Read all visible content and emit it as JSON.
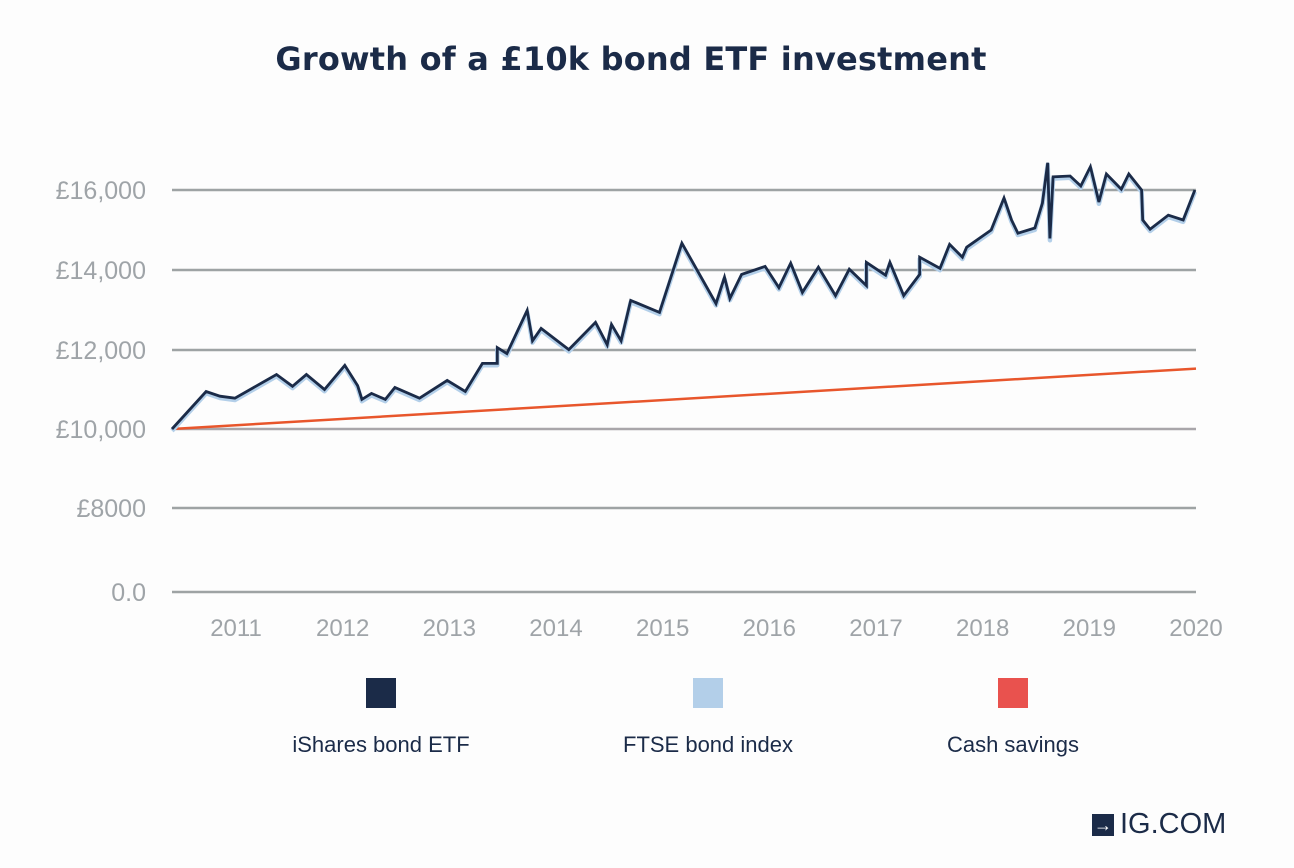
{
  "chart_data": {
    "type": "line",
    "title": "Growth of a £10k bond ETF investment",
    "xlabel": "",
    "ylabel": "",
    "xlim": [
      2010.4,
      2020
    ],
    "x_ticks": [
      "2011",
      "2012",
      "2013",
      "2014",
      "2015",
      "2016",
      "2017",
      "2018",
      "2019",
      "2020"
    ],
    "y_ticks": [
      {
        "value": 0,
        "label": "0.0"
      },
      {
        "value": 8000,
        "label": "£8000"
      },
      {
        "value": 10000,
        "label": "£10,000"
      },
      {
        "value": 12000,
        "label": "£12,000"
      },
      {
        "value": 14000,
        "label": "£14,000"
      },
      {
        "value": 16000,
        "label": "£16,000"
      }
    ],
    "grid": true,
    "legend_position": "bottom",
    "series": [
      {
        "name": "iShares bond ETF",
        "color": "#1b2b48",
        "points": [
          [
            2010.4,
            10000
          ],
          [
            2010.72,
            10950
          ],
          [
            2010.85,
            10830
          ],
          [
            2010.99,
            10780
          ],
          [
            2011.38,
            11380
          ],
          [
            2011.53,
            11080
          ],
          [
            2011.66,
            11380
          ],
          [
            2011.83,
            11000
          ],
          [
            2012.02,
            11610
          ],
          [
            2012.14,
            11100
          ],
          [
            2012.18,
            10750
          ],
          [
            2012.27,
            10900
          ],
          [
            2012.4,
            10750
          ],
          [
            2012.49,
            11050
          ],
          [
            2012.72,
            10780
          ],
          [
            2012.98,
            11230
          ],
          [
            2013.15,
            10950
          ],
          [
            2013.31,
            11660
          ],
          [
            2013.45,
            11660
          ],
          [
            2013.45,
            12060
          ],
          [
            2013.54,
            11910
          ],
          [
            2013.73,
            12990
          ],
          [
            2013.78,
            12230
          ],
          [
            2013.86,
            12540
          ],
          [
            2014.12,
            12010
          ],
          [
            2014.37,
            12690
          ],
          [
            2014.48,
            12130
          ],
          [
            2014.52,
            12640
          ],
          [
            2014.61,
            12230
          ],
          [
            2014.7,
            13240
          ],
          [
            2014.97,
            12940
          ],
          [
            2015.18,
            14670
          ],
          [
            2015.5,
            13160
          ],
          [
            2015.58,
            13820
          ],
          [
            2015.63,
            13290
          ],
          [
            2015.74,
            13890
          ],
          [
            2015.96,
            14090
          ],
          [
            2016.09,
            13560
          ],
          [
            2016.2,
            14170
          ],
          [
            2016.31,
            13440
          ],
          [
            2016.46,
            14070
          ],
          [
            2016.62,
            13360
          ],
          [
            2016.75,
            14020
          ],
          [
            2016.91,
            13610
          ],
          [
            2016.91,
            14190
          ],
          [
            2017.09,
            13870
          ],
          [
            2017.13,
            14190
          ],
          [
            2017.26,
            13360
          ],
          [
            2017.41,
            13890
          ],
          [
            2017.41,
            14320
          ],
          [
            2017.6,
            14040
          ],
          [
            2017.69,
            14640
          ],
          [
            2017.81,
            14320
          ],
          [
            2017.85,
            14570
          ],
          [
            2018.08,
            15000
          ],
          [
            2018.2,
            15800
          ],
          [
            2018.27,
            15250
          ],
          [
            2018.33,
            14920
          ],
          [
            2018.49,
            15050
          ],
          [
            2018.56,
            15670
          ],
          [
            2018.61,
            16680
          ],
          [
            2018.63,
            14790
          ],
          [
            2018.66,
            16330
          ],
          [
            2018.82,
            16350
          ],
          [
            2018.92,
            16100
          ],
          [
            2019.01,
            16580
          ],
          [
            2019.09,
            15700
          ],
          [
            2019.16,
            16400
          ],
          [
            2019.3,
            16020
          ],
          [
            2019.37,
            16400
          ],
          [
            2019.49,
            16000
          ],
          [
            2019.5,
            15250
          ],
          [
            2019.57,
            15020
          ],
          [
            2019.74,
            15370
          ],
          [
            2019.88,
            15250
          ],
          [
            2019.99,
            16000
          ]
        ]
      },
      {
        "name": "FTSE bond index",
        "color": "#b3cfe9",
        "points": [
          [
            2010.4,
            10000
          ],
          [
            2010.72,
            10950
          ],
          [
            2010.85,
            10830
          ],
          [
            2010.99,
            10780
          ],
          [
            2011.38,
            11380
          ],
          [
            2011.53,
            11080
          ],
          [
            2011.66,
            11380
          ],
          [
            2011.83,
            11000
          ],
          [
            2012.02,
            11610
          ],
          [
            2012.14,
            11100
          ],
          [
            2012.18,
            10750
          ],
          [
            2012.27,
            10900
          ],
          [
            2012.4,
            10750
          ],
          [
            2012.49,
            11050
          ],
          [
            2012.72,
            10780
          ],
          [
            2012.98,
            11230
          ],
          [
            2013.15,
            10950
          ],
          [
            2013.31,
            11660
          ],
          [
            2013.45,
            11660
          ],
          [
            2013.45,
            12060
          ],
          [
            2013.54,
            11910
          ],
          [
            2013.73,
            12990
          ],
          [
            2013.78,
            12230
          ],
          [
            2013.86,
            12540
          ],
          [
            2014.12,
            12010
          ],
          [
            2014.37,
            12690
          ],
          [
            2014.48,
            12130
          ],
          [
            2014.52,
            12640
          ],
          [
            2014.61,
            12230
          ],
          [
            2014.7,
            13240
          ],
          [
            2014.97,
            12940
          ],
          [
            2015.18,
            14670
          ],
          [
            2015.5,
            13160
          ],
          [
            2015.58,
            13820
          ],
          [
            2015.63,
            13290
          ],
          [
            2015.74,
            13890
          ],
          [
            2015.96,
            14090
          ],
          [
            2016.09,
            13560
          ],
          [
            2016.2,
            14170
          ],
          [
            2016.31,
            13440
          ],
          [
            2016.46,
            14070
          ],
          [
            2016.62,
            13360
          ],
          [
            2016.75,
            14020
          ],
          [
            2016.91,
            13610
          ],
          [
            2016.91,
            14190
          ],
          [
            2017.09,
            13870
          ],
          [
            2017.13,
            14190
          ],
          [
            2017.26,
            13360
          ],
          [
            2017.41,
            13890
          ],
          [
            2017.41,
            14320
          ],
          [
            2017.6,
            14040
          ],
          [
            2017.69,
            14640
          ],
          [
            2017.81,
            14320
          ],
          [
            2017.85,
            14570
          ],
          [
            2018.08,
            15000
          ],
          [
            2018.2,
            15800
          ],
          [
            2018.27,
            15250
          ],
          [
            2018.33,
            14920
          ],
          [
            2018.49,
            15050
          ],
          [
            2018.56,
            15670
          ],
          [
            2018.61,
            16680
          ],
          [
            2018.63,
            14790
          ],
          [
            2018.66,
            16330
          ],
          [
            2018.82,
            16350
          ],
          [
            2018.92,
            16100
          ],
          [
            2019.01,
            16580
          ],
          [
            2019.09,
            15700
          ],
          [
            2019.16,
            16400
          ],
          [
            2019.3,
            16020
          ],
          [
            2019.37,
            16400
          ],
          [
            2019.49,
            16000
          ],
          [
            2019.5,
            15250
          ],
          [
            2019.57,
            15020
          ],
          [
            2019.74,
            15370
          ],
          [
            2019.88,
            15250
          ],
          [
            2019.99,
            16000
          ]
        ]
      },
      {
        "name": "Cash savings",
        "color": "#e8562c",
        "legend_color": "#e9524e",
        "points": [
          [
            2010.4,
            10000
          ],
          [
            2020.0,
            11530
          ]
        ]
      }
    ]
  },
  "logo": {
    "text": "IG.COM",
    "arrow": "→"
  }
}
